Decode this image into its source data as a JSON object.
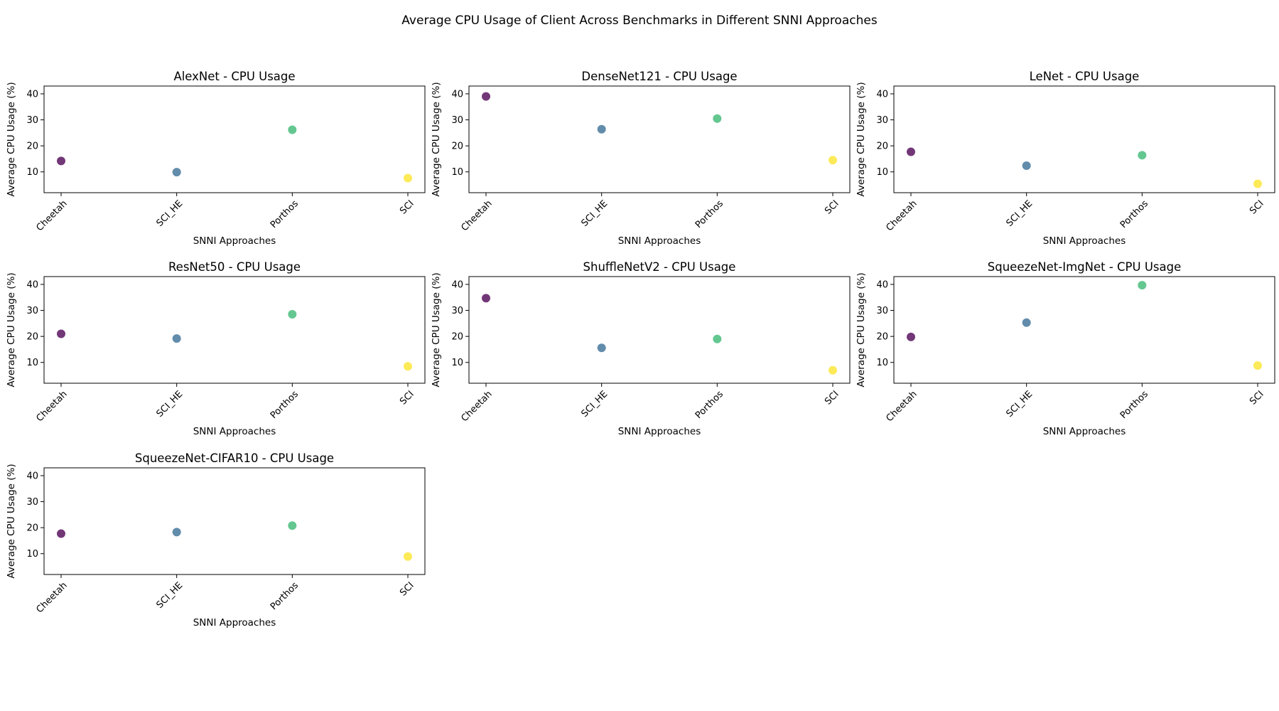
{
  "figure": {
    "title": "Average CPU Usage of Client Across Benchmarks in Different SNNI Approaches"
  },
  "point_colors": {
    "Cheetah": "#6a2c70",
    "SCI_HE": "#5a86a6",
    "Porthos": "#5cc48a",
    "SCI": "#fce94f"
  },
  "chart_data": [
    {
      "type": "scatter",
      "title": "AlexNet - CPU Usage",
      "xlabel": "SNNI Approaches",
      "ylabel": "Average CPU Usage (%)",
      "categories": [
        "Cheetah",
        "SCI_HE",
        "Porthos",
        "SCI"
      ],
      "values": [
        14.2,
        9.9,
        26.2,
        7.6
      ],
      "yticks": [
        10,
        20,
        30,
        40
      ],
      "ylim": [
        2,
        43
      ],
      "grid": false
    },
    {
      "type": "scatter",
      "title": "DenseNet121 - CPU Usage",
      "xlabel": "SNNI Approaches",
      "ylabel": "Average CPU Usage (%)",
      "categories": [
        "Cheetah",
        "SCI_HE",
        "Porthos",
        "SCI"
      ],
      "values": [
        39.0,
        26.4,
        30.5,
        14.5
      ],
      "yticks": [
        10,
        20,
        30,
        40
      ],
      "ylim": [
        2,
        43
      ],
      "grid": false
    },
    {
      "type": "scatter",
      "title": "LeNet - CPU Usage",
      "xlabel": "SNNI Approaches",
      "ylabel": "Average CPU Usage (%)",
      "categories": [
        "Cheetah",
        "SCI_HE",
        "Porthos",
        "SCI"
      ],
      "values": [
        17.7,
        12.4,
        16.4,
        5.4
      ],
      "yticks": [
        10,
        20,
        30,
        40
      ],
      "ylim": [
        2,
        43
      ],
      "grid": false
    },
    {
      "type": "scatter",
      "title": "ResNet50 - CPU Usage",
      "xlabel": "SNNI Approaches",
      "ylabel": "Average CPU Usage (%)",
      "categories": [
        "Cheetah",
        "SCI_HE",
        "Porthos",
        "SCI"
      ],
      "values": [
        21.0,
        19.2,
        28.5,
        8.5
      ],
      "yticks": [
        10,
        20,
        30,
        40
      ],
      "ylim": [
        2,
        43
      ],
      "grid": false
    },
    {
      "type": "scatter",
      "title": "ShuffleNetV2 - CPU Usage",
      "xlabel": "SNNI Approaches",
      "ylabel": "Average CPU Usage (%)",
      "categories": [
        "Cheetah",
        "SCI_HE",
        "Porthos",
        "SCI"
      ],
      "values": [
        34.7,
        15.6,
        19.0,
        7.0
      ],
      "yticks": [
        10,
        20,
        30,
        40
      ],
      "ylim": [
        2,
        43
      ],
      "grid": false
    },
    {
      "type": "scatter",
      "title": "SqueezeNet-ImgNet - CPU Usage",
      "xlabel": "SNNI Approaches",
      "ylabel": "Average CPU Usage (%)",
      "categories": [
        "Cheetah",
        "SCI_HE",
        "Porthos",
        "SCI"
      ],
      "values": [
        19.8,
        25.3,
        39.7,
        8.8
      ],
      "yticks": [
        10,
        20,
        30,
        40
      ],
      "ylim": [
        2,
        43
      ],
      "grid": false
    },
    {
      "type": "scatter",
      "title": "SqueezeNet-CIFAR10 - CPU Usage",
      "xlabel": "SNNI Approaches",
      "ylabel": "Average CPU Usage (%)",
      "categories": [
        "Cheetah",
        "SCI_HE",
        "Porthos",
        "SCI"
      ],
      "values": [
        17.7,
        18.3,
        20.8,
        8.9
      ],
      "yticks": [
        10,
        20,
        30,
        40
      ],
      "ylim": [
        2,
        43
      ],
      "grid": false
    }
  ]
}
